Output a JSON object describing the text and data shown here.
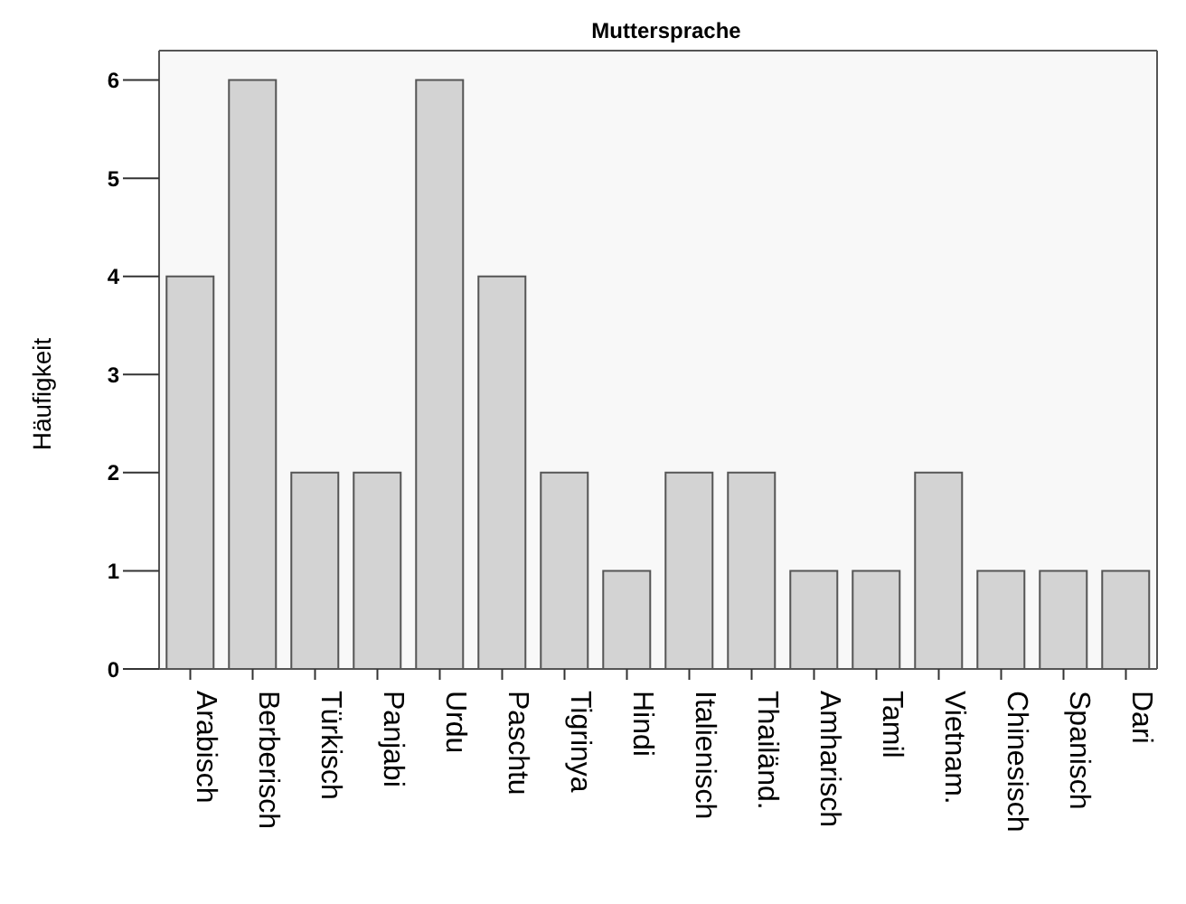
{
  "chart_data": {
    "type": "bar",
    "title": "Muttersprache",
    "ylabel": "Häufigkeit",
    "categories": [
      "Arabisch",
      "Berberisch",
      "Türkisch",
      "Panjabi",
      "Urdu",
      "Paschtu",
      "Tigrinya",
      "Hindi",
      "Italienisch",
      "Thailänd.",
      "Amharisch",
      "Tamil",
      "Vietnam.",
      "Chinesisch",
      "Spanisch",
      "Dari"
    ],
    "values": [
      4,
      6,
      2,
      2,
      6,
      4,
      2,
      1,
      2,
      2,
      1,
      1,
      2,
      1,
      1,
      1
    ],
    "color": "#d3d3d3",
    "ylim": [
      0,
      6.3
    ],
    "yticks": [
      0,
      1,
      2,
      3,
      4,
      5,
      6
    ],
    "grid": false
  }
}
